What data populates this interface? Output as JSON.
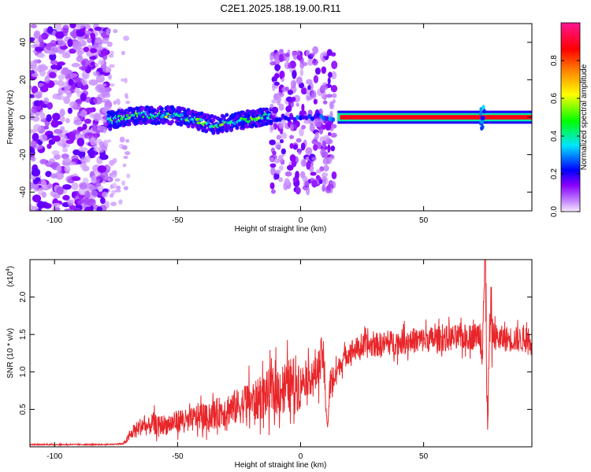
{
  "title": "C2E1.2025.188.19.00.R11",
  "chart_data": [
    {
      "type": "heatmap",
      "xlabel": "Height of straight line (km)",
      "ylabel": "Frequency (Hz)",
      "xlim": [
        -110,
        94
      ],
      "ylim": [
        -50,
        50
      ],
      "xticks": [
        -100,
        -50,
        0,
        50
      ],
      "yticks": [
        -40,
        -20,
        0,
        20,
        40
      ],
      "grid": false,
      "colorbar": {
        "label": "Normalized spectral amplitude",
        "range": [
          0.0,
          1.0
        ],
        "ticks": [
          0.0,
          0.2,
          0.4,
          0.6,
          0.8
        ],
        "tick_labels": [
          "0.0",
          "0.2",
          "0.4",
          "0.6",
          "0.8"
        ],
        "colors": [
          "#f5eaff",
          "#8a00ff",
          "#0000ff",
          "#00e5ff",
          "#00ff00",
          "#ffff00",
          "#ff7f00",
          "#ff0000",
          "#ff1493"
        ]
      },
      "regions": [
        {
          "x": [
            -110,
            -78
          ],
          "f": [
            -50,
            50
          ],
          "amplitude": 0.05,
          "character": "diffuse noise"
        },
        {
          "x": [
            -78,
            -12
          ],
          "f": [
            -8,
            5
          ],
          "amplitude": 0.35,
          "character": "wandering signal band"
        },
        {
          "x": [
            -12,
            14
          ],
          "f": [
            -40,
            37
          ],
          "amplitude": 0.1,
          "character": "scattered noise"
        },
        {
          "x": [
            15,
            94
          ],
          "f": [
            -1.5,
            1.5
          ],
          "amplitude": 0.9,
          "character": "strong constant tone near 0 Hz"
        }
      ]
    },
    {
      "type": "line",
      "xlabel": "Height of straight line (km)",
      "ylabel": "SNR (10 * v/v)",
      "yscale_label": "(x10",
      "yscale_exp": "4",
      "xlim": [
        -110,
        94
      ],
      "ylim": [
        0,
        25000
      ],
      "xticks": [
        -100,
        -50,
        0,
        50
      ],
      "yticks": [
        5000,
        10000,
        15000,
        20000
      ],
      "ytick_labels": [
        "0.5",
        "1.0",
        "1.5",
        "2.0"
      ],
      "grid": false,
      "color": "#e8262a",
      "series": [
        {
          "x": [
            -110,
            -80,
            -72,
            -70,
            -68,
            -66,
            -64,
            -62,
            -60,
            -58,
            -56,
            -54,
            -52,
            -50,
            -48,
            -46,
            -44,
            -42,
            -40,
            -38,
            -36,
            -34,
            -32,
            -30,
            -28,
            -26,
            -24,
            -22,
            -20,
            -18,
            -16,
            -14,
            -12,
            -10,
            -8,
            -6,
            -4,
            -2,
            0,
            2,
            4,
            6,
            8,
            9,
            10,
            11,
            12,
            14,
            16,
            18,
            20,
            22,
            25,
            30,
            35,
            40,
            45,
            50,
            55,
            60,
            65,
            70,
            72,
            74,
            75,
            76,
            77,
            78,
            80,
            85,
            90,
            94
          ],
          "y": [
            300,
            300,
            400,
            1200,
            2000,
            2500,
            3000,
            2600,
            3200,
            2800,
            3000,
            2900,
            3200,
            3400,
            3700,
            3300,
            3600,
            4000,
            4200,
            3800,
            4300,
            4500,
            4700,
            5000,
            5200,
            5300,
            5600,
            6000,
            6200,
            6100,
            6600,
            7000,
            7300,
            7500,
            7800,
            8000,
            8200,
            8500,
            8700,
            9000,
            9300,
            9500,
            11000,
            13000,
            7000,
            2500,
            8500,
            9500,
            11000,
            12000,
            12800,
            13000,
            13300,
            13600,
            13800,
            14000,
            14200,
            14300,
            14400,
            14500,
            14600,
            14700,
            15000,
            16000,
            25000,
            3000,
            17000,
            15000,
            14500,
            14400,
            14300,
            14200
          ]
        }
      ]
    }
  ]
}
